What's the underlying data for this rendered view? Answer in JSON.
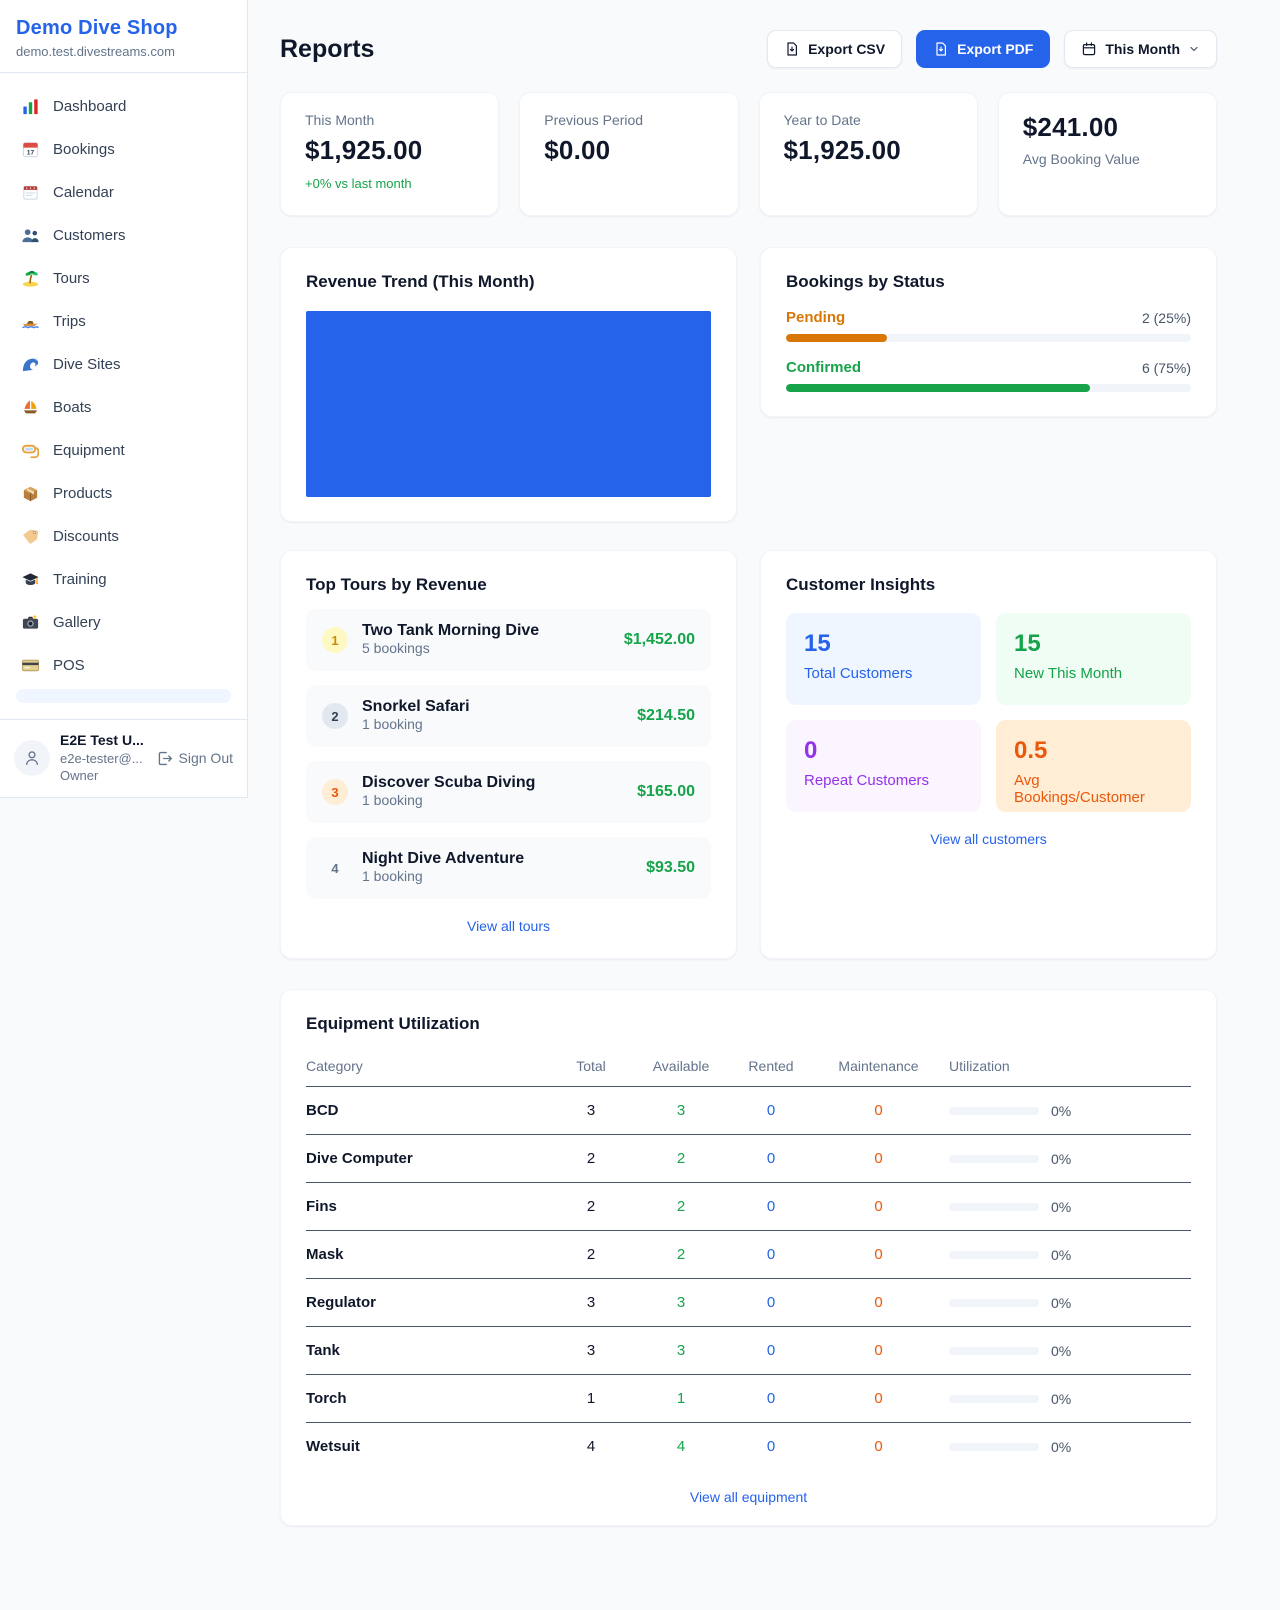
{
  "colors": {
    "accent_blue": "#2563eb",
    "success_green": "#16a34a",
    "pending_orange": "#d97706",
    "maintenance_orange": "#ea580c",
    "repeat_purple": "#9333ea",
    "page_bg": "#f8fafc"
  },
  "sidebar": {
    "shop_name": "Demo Dive Shop",
    "shop_domain": "demo.test.divestreams.com",
    "items": [
      {
        "label": "Dashboard",
        "icon": "bar-chart"
      },
      {
        "label": "Bookings",
        "icon": "calendar-date"
      },
      {
        "label": "Calendar",
        "icon": "calendar-pad"
      },
      {
        "label": "Customers",
        "icon": "people"
      },
      {
        "label": "Tours",
        "icon": "palm-island"
      },
      {
        "label": "Trips",
        "icon": "speedboat"
      },
      {
        "label": "Dive Sites",
        "icon": "wave"
      },
      {
        "label": "Boats",
        "icon": "sailboat"
      },
      {
        "label": "Equipment",
        "icon": "dive-mask"
      },
      {
        "label": "Products",
        "icon": "package-box"
      },
      {
        "label": "Discounts",
        "icon": "price-tag"
      },
      {
        "label": "Training",
        "icon": "graduation-cap"
      },
      {
        "label": "Gallery",
        "icon": "camera-flash"
      },
      {
        "label": "POS",
        "icon": "credit-card"
      }
    ],
    "user": {
      "name": "E2E Test U...",
      "email": "e2e-tester@...",
      "role": "Owner",
      "sign_out_label": "Sign Out"
    }
  },
  "header": {
    "title": "Reports",
    "export_csv_label": "Export CSV",
    "export_pdf_label": "Export PDF",
    "period_label": "This Month"
  },
  "stats": [
    {
      "label": "This Month",
      "value": "$1,925.00",
      "delta": "+0% vs last month"
    },
    {
      "label": "Previous Period",
      "value": "$0.00"
    },
    {
      "label": "Year to Date",
      "value": "$1,925.00"
    },
    {
      "label": "Avg Booking Value",
      "value": "$241.00"
    }
  ],
  "revenue_trend": {
    "title": "Revenue Trend (This Month)",
    "chart": {
      "type": "bar",
      "note": "single full-width bar filling plot area",
      "bar_color": "#2563eb"
    }
  },
  "bookings_by_status": {
    "title": "Bookings by Status",
    "rows": [
      {
        "label": "Pending",
        "count_text": "2 (25%)",
        "pct": 25
      },
      {
        "label": "Confirmed",
        "count_text": "6 (75%)",
        "pct": 75
      }
    ]
  },
  "top_tours": {
    "title": "Top Tours by Revenue",
    "view_all_label": "View all tours",
    "items": [
      {
        "rank": "1",
        "name": "Two Tank Morning Dive",
        "bookings": "5 bookings",
        "revenue": "$1,452.00"
      },
      {
        "rank": "2",
        "name": "Snorkel Safari",
        "bookings": "1 booking",
        "revenue": "$214.50"
      },
      {
        "rank": "3",
        "name": "Discover Scuba Diving",
        "bookings": "1 booking",
        "revenue": "$165.00"
      },
      {
        "rank": "4",
        "name": "Night Dive Adventure",
        "bookings": "1 booking",
        "revenue": "$93.50"
      }
    ]
  },
  "customer_insights": {
    "title": "Customer Insights",
    "view_all_label": "View all customers",
    "cards": [
      {
        "value": "15",
        "label": "Total Customers",
        "theme": "blue"
      },
      {
        "value": "15",
        "label": "New This Month",
        "theme": "green"
      },
      {
        "value": "0",
        "label": "Repeat Customers",
        "theme": "purple"
      },
      {
        "value": "0.5",
        "label": "Avg Bookings/Customer",
        "theme": "orange"
      }
    ]
  },
  "equipment": {
    "title": "Equipment Utilization",
    "view_all_label": "View all equipment",
    "columns": [
      "Category",
      "Total",
      "Available",
      "Rented",
      "Maintenance",
      "Utilization"
    ],
    "rows": [
      {
        "category": "BCD",
        "total": "3",
        "available": "3",
        "rented": "0",
        "maintenance": "0",
        "utilization": "0%",
        "utilization_pct": 0
      },
      {
        "category": "Dive Computer",
        "total": "2",
        "available": "2",
        "rented": "0",
        "maintenance": "0",
        "utilization": "0%",
        "utilization_pct": 0
      },
      {
        "category": "Fins",
        "total": "2",
        "available": "2",
        "rented": "0",
        "maintenance": "0",
        "utilization": "0%",
        "utilization_pct": 0
      },
      {
        "category": "Mask",
        "total": "2",
        "available": "2",
        "rented": "0",
        "maintenance": "0",
        "utilization": "0%",
        "utilization_pct": 0
      },
      {
        "category": "Regulator",
        "total": "3",
        "available": "3",
        "rented": "0",
        "maintenance": "0",
        "utilization": "0%",
        "utilization_pct": 0
      },
      {
        "category": "Tank",
        "total": "3",
        "available": "3",
        "rented": "0",
        "maintenance": "0",
        "utilization": "0%",
        "utilization_pct": 0
      },
      {
        "category": "Torch",
        "total": "1",
        "available": "1",
        "rented": "0",
        "maintenance": "0",
        "utilization": "0%",
        "utilization_pct": 0
      },
      {
        "category": "Wetsuit",
        "total": "4",
        "available": "4",
        "rented": "0",
        "maintenance": "0",
        "utilization": "0%",
        "utilization_pct": 0
      }
    ]
  }
}
